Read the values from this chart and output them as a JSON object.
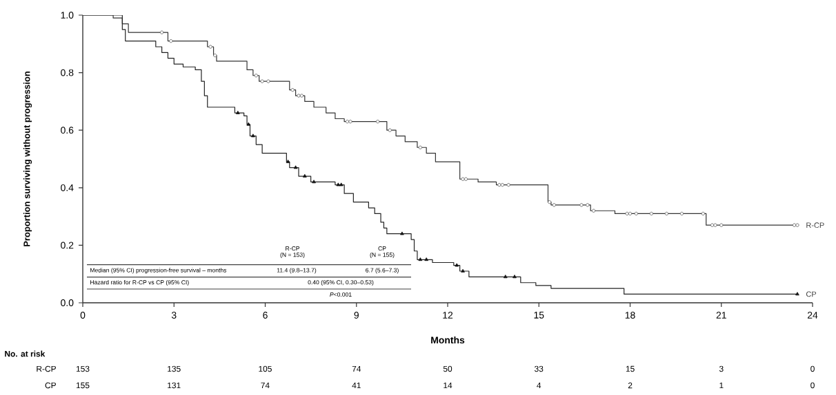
{
  "chart_data": {
    "type": "step",
    "xlabel": "Months",
    "ylabel": "Proportion surviving without progression",
    "xlim": [
      0,
      24
    ],
    "ylim": [
      0,
      1
    ],
    "xticks": [
      0,
      3,
      6,
      9,
      12,
      15,
      18,
      21,
      24
    ],
    "yticks": [
      {
        "value": 0,
        "label": "0.0"
      },
      {
        "value": 0.2,
        "label": "0.2"
      },
      {
        "value": 0.4,
        "label": "0.4"
      },
      {
        "value": 0.6,
        "label": "0.6"
      },
      {
        "value": 0.8,
        "label": "0.8"
      },
      {
        "value": 1,
        "label": "1.0"
      }
    ],
    "series": [
      {
        "name": "R-CP",
        "marker": "none",
        "color": "#333333",
        "x": [
          0,
          1.0,
          1.3,
          1.5,
          2.8,
          4.1,
          4.3,
          4.4,
          5.4,
          5.6,
          5.8,
          6.8,
          7.0,
          7.3,
          7.6,
          8.0,
          8.3,
          8.6,
          10.0,
          10.3,
          10.6,
          11.0,
          11.3,
          11.6,
          12.4,
          13.0,
          13.6,
          15.3,
          15.4,
          16.7,
          17.5,
          20.5,
          23.5
        ],
        "values": [
          1.0,
          0.99,
          0.97,
          0.94,
          0.91,
          0.89,
          0.86,
          0.84,
          0.81,
          0.79,
          0.77,
          0.74,
          0.72,
          0.7,
          0.68,
          0.66,
          0.64,
          0.63,
          0.6,
          0.58,
          0.56,
          0.54,
          0.52,
          0.49,
          0.43,
          0.42,
          0.41,
          0.35,
          0.34,
          0.32,
          0.31,
          0.27,
          0.27
        ]
      },
      {
        "name": "CP",
        "marker": "none",
        "color": "#222222",
        "x": [
          0,
          1.3,
          1.4,
          2.4,
          2.6,
          2.8,
          3.0,
          3.3,
          3.7,
          3.9,
          4.0,
          4.1,
          5.0,
          5.3,
          5.4,
          5.5,
          5.7,
          5.9,
          6.7,
          6.8,
          7.1,
          7.5,
          8.3,
          8.6,
          8.9,
          9.4,
          9.6,
          9.8,
          9.9,
          10.0,
          10.8,
          10.9,
          11.0,
          11.5,
          12.2,
          12.4,
          12.7,
          14.4,
          14.9,
          15.4,
          17.8,
          23.5
        ],
        "values": [
          1.0,
          0.95,
          0.91,
          0.89,
          0.87,
          0.85,
          0.83,
          0.82,
          0.81,
          0.77,
          0.72,
          0.68,
          0.66,
          0.65,
          0.62,
          0.58,
          0.55,
          0.52,
          0.49,
          0.47,
          0.44,
          0.42,
          0.41,
          0.38,
          0.35,
          0.33,
          0.31,
          0.28,
          0.26,
          0.24,
          0.22,
          0.18,
          0.15,
          0.14,
          0.13,
          0.11,
          0.09,
          0.07,
          0.06,
          0.05,
          0.03,
          0.03
        ]
      },
      {
        "type": "scatter",
        "marker": "circle",
        "color": "#555555",
        "x": [
          2.6,
          2.9,
          4.2,
          4.35,
          5.7,
          5.9,
          6.1,
          6.9,
          7.1,
          7.2,
          8.7,
          8.8,
          9.7,
          10.1,
          11.1,
          12.5,
          12.6,
          13.7,
          13.8,
          14.0,
          15.35,
          15.5,
          16.4,
          16.6,
          16.8,
          17.9,
          18.0,
          18.2,
          18.7,
          19.2,
          19.7,
          20.4,
          20.7,
          20.8,
          21.0,
          23.4,
          23.5
        ],
        "values": [
          0.94,
          0.91,
          0.89,
          0.86,
          0.79,
          0.77,
          0.77,
          0.74,
          0.72,
          0.72,
          0.63,
          0.63,
          0.63,
          0.6,
          0.54,
          0.43,
          0.43,
          0.41,
          0.41,
          0.41,
          0.35,
          0.34,
          0.34,
          0.34,
          0.32,
          0.31,
          0.31,
          0.31,
          0.31,
          0.31,
          0.31,
          0.31,
          0.27,
          0.27,
          0.27,
          0.27,
          0.27
        ]
      },
      {
        "type": "scatter",
        "marker": "triangle",
        "color": "#111111",
        "x": [
          5.1,
          5.45,
          5.6,
          6.75,
          7.0,
          7.3,
          7.6,
          8.4,
          8.5,
          10.5,
          11.1,
          11.3,
          12.3,
          12.5,
          13.9,
          14.2,
          23.5
        ],
        "values": [
          0.66,
          0.62,
          0.58,
          0.49,
          0.47,
          0.44,
          0.42,
          0.41,
          0.41,
          0.24,
          0.15,
          0.15,
          0.13,
          0.11,
          0.09,
          0.09,
          0.03
        ]
      }
    ],
    "annotations": [
      "R-CP",
      "(N = 153)",
      "CP",
      "(N = 155)",
      "Median (95% CI) progression-free survival – months",
      "11.4 (9.8–13.7)",
      "6.7 (5.6–7.3)",
      "Hazard ratio for R-CP vs CP (95% CI)",
      "0.40 (95% CI, 0.30–0.53)",
      "*P*<0.001",
      "No. at risk",
      "R-CP",
      "CP",
      "153",
      "135",
      "105",
      "74",
      "50",
      "33",
      "15",
      "3",
      "0",
      "155",
      "131",
      "74",
      "41",
      "14",
      "4",
      "2",
      "1",
      "0"
    ]
  }
}
